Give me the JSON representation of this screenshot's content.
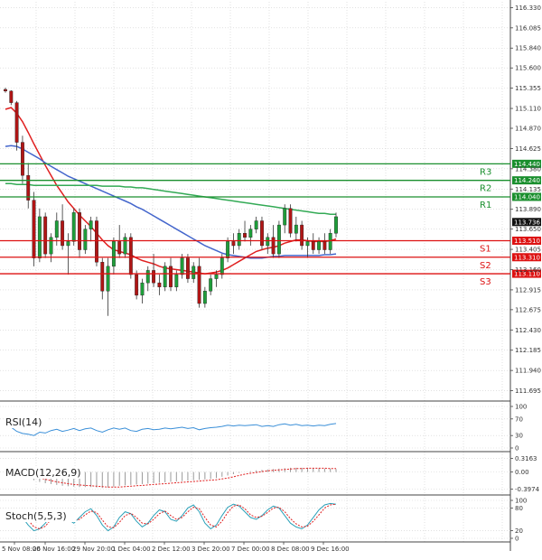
{
  "chart_data": {
    "type": "candlestick",
    "price_ylim": [
      111.57,
      116.4
    ],
    "y_ticks": [
      "116.330",
      "116.085",
      "115.840",
      "115.600",
      "115.355",
      "115.110",
      "114.870",
      "114.625",
      "114.380",
      "114.135",
      "113.890",
      "113.650",
      "113.405",
      "113.160",
      "112.915",
      "112.675",
      "112.430",
      "112.185",
      "111.940",
      "111.695"
    ],
    "y_tick_values": [
      116.33,
      116.085,
      115.84,
      115.6,
      115.355,
      115.11,
      114.87,
      114.625,
      114.38,
      114.135,
      113.89,
      113.65,
      113.405,
      113.16,
      112.915,
      112.675,
      112.43,
      112.185,
      111.94,
      111.695
    ],
    "x_ticks": [
      "5 Nov 08:00",
      "26 Nov 16:00",
      "29 Nov 20:00",
      "1 Dec 04:00",
      "2 Dec 12:00",
      "3 Dec 20:00",
      "7 Dec 00:00",
      "8 Dec 08:00",
      "9 Dec 16:00"
    ],
    "levels": [
      {
        "name": "R3",
        "value": 114.44,
        "label": "114.440",
        "color": "#1a8f2e"
      },
      {
        "name": "R2",
        "value": 114.24,
        "label": "114.240",
        "color": "#1a8f2e"
      },
      {
        "name": "R1",
        "value": 114.04,
        "label": "114.040",
        "color": "#1a8f2e"
      },
      {
        "name": "S1",
        "value": 113.51,
        "label": "113.510",
        "color": "#dd1111"
      },
      {
        "name": "S2",
        "value": 113.31,
        "label": "113.310",
        "color": "#dd1111"
      },
      {
        "name": "S3",
        "value": 113.11,
        "label": "113.110",
        "color": "#dd1111"
      }
    ],
    "current_price": {
      "value": 113.736,
      "label": "113.736"
    },
    "candles": [
      [
        115.34,
        115.36,
        115.3,
        115.32
      ],
      [
        115.32,
        115.33,
        115.15,
        115.18
      ],
      [
        115.18,
        115.2,
        114.6,
        114.7
      ],
      [
        114.7,
        114.78,
        114.2,
        114.3
      ],
      [
        114.3,
        114.45,
        113.9,
        114.0
      ],
      [
        114.0,
        114.1,
        113.2,
        113.3
      ],
      [
        113.3,
        113.9,
        113.25,
        113.8
      ],
      [
        113.8,
        113.85,
        113.3,
        113.35
      ],
      [
        113.35,
        113.6,
        113.25,
        113.55
      ],
      [
        113.55,
        113.85,
        113.45,
        113.75
      ],
      [
        113.75,
        113.95,
        113.4,
        113.45
      ],
      [
        113.45,
        113.6,
        113.1,
        113.5
      ],
      [
        113.5,
        113.9,
        113.45,
        113.85
      ],
      [
        113.85,
        113.9,
        113.3,
        113.4
      ],
      [
        113.4,
        113.7,
        113.35,
        113.65
      ],
      [
        113.65,
        113.8,
        113.5,
        113.75
      ],
      [
        113.75,
        113.8,
        113.2,
        113.25
      ],
      [
        113.25,
        113.3,
        112.8,
        112.9
      ],
      [
        112.9,
        113.3,
        112.6,
        113.2
      ],
      [
        113.2,
        113.55,
        113.1,
        113.5
      ],
      [
        113.5,
        113.7,
        113.3,
        113.35
      ],
      [
        113.35,
        113.6,
        113.3,
        113.55
      ],
      [
        113.55,
        113.6,
        113.05,
        113.1
      ],
      [
        113.1,
        113.15,
        112.8,
        112.85
      ],
      [
        112.85,
        113.05,
        112.75,
        113.0
      ],
      [
        113.0,
        113.2,
        112.9,
        113.15
      ],
      [
        113.15,
        113.35,
        112.95,
        113.0
      ],
      [
        113.0,
        113.1,
        112.85,
        112.95
      ],
      [
        112.95,
        113.25,
        112.9,
        113.2
      ],
      [
        113.2,
        113.3,
        112.9,
        112.95
      ],
      [
        112.95,
        113.15,
        112.9,
        113.1
      ],
      [
        113.1,
        113.35,
        113.05,
        113.3
      ],
      [
        113.3,
        113.35,
        113.0,
        113.05
      ],
      [
        113.05,
        113.25,
        113.0,
        113.2
      ],
      [
        113.2,
        113.3,
        112.7,
        112.75
      ],
      [
        112.75,
        112.95,
        112.7,
        112.9
      ],
      [
        112.9,
        113.1,
        112.85,
        113.05
      ],
      [
        113.05,
        113.15,
        112.95,
        113.1
      ],
      [
        113.1,
        113.35,
        113.05,
        113.3
      ],
      [
        113.3,
        113.55,
        113.25,
        113.5
      ],
      [
        113.5,
        113.6,
        113.35,
        113.45
      ],
      [
        113.45,
        113.65,
        113.4,
        113.6
      ],
      [
        113.6,
        113.75,
        113.5,
        113.55
      ],
      [
        113.55,
        113.7,
        113.45,
        113.65
      ],
      [
        113.65,
        113.8,
        113.6,
        113.75
      ],
      [
        113.75,
        113.8,
        113.4,
        113.45
      ],
      [
        113.45,
        113.6,
        113.35,
        113.55
      ],
      [
        113.55,
        113.7,
        113.3,
        113.35
      ],
      [
        113.35,
        113.75,
        113.3,
        113.7
      ],
      [
        113.7,
        113.95,
        113.6,
        113.9
      ],
      [
        113.9,
        113.95,
        113.55,
        113.6
      ],
      [
        113.6,
        113.8,
        113.5,
        113.7
      ],
      [
        113.7,
        113.75,
        113.4,
        113.45
      ],
      [
        113.45,
        113.55,
        113.3,
        113.5
      ],
      [
        113.5,
        113.6,
        113.35,
        113.4
      ],
      [
        113.4,
        113.55,
        113.35,
        113.5
      ],
      [
        113.5,
        113.6,
        113.35,
        113.4
      ],
      [
        113.4,
        113.65,
        113.35,
        113.6
      ],
      [
        113.6,
        113.85,
        113.55,
        113.8
      ]
    ],
    "series": [
      {
        "name": "MA-short",
        "color": "#e02020",
        "values": [
          115.1,
          115.12,
          115.05,
          114.95,
          114.82,
          114.68,
          114.55,
          114.42,
          114.3,
          114.18,
          114.08,
          113.98,
          113.9,
          113.82,
          113.75,
          113.68,
          113.6,
          113.52,
          113.45,
          113.4,
          113.38,
          113.36,
          113.34,
          113.3,
          113.27,
          113.25,
          113.23,
          113.2,
          113.18,
          113.17,
          113.16,
          113.15,
          113.14,
          113.13,
          113.12,
          113.11,
          113.12,
          113.13,
          113.15,
          113.18,
          113.22,
          113.26,
          113.3,
          113.34,
          113.38,
          113.4,
          113.42,
          113.43,
          113.45,
          113.48,
          113.5,
          113.52,
          113.52,
          113.51,
          113.5,
          113.5,
          113.5,
          113.51,
          113.53
        ]
      },
      {
        "name": "MA-mid",
        "color": "#4466cc",
        "values": [
          114.65,
          114.66,
          114.65,
          114.62,
          114.58,
          114.54,
          114.5,
          114.45,
          114.41,
          114.37,
          114.33,
          114.29,
          114.26,
          114.23,
          114.2,
          114.17,
          114.14,
          114.11,
          114.08,
          114.05,
          114.02,
          113.99,
          113.96,
          113.92,
          113.89,
          113.85,
          113.81,
          113.77,
          113.73,
          113.69,
          113.65,
          113.61,
          113.57,
          113.53,
          113.49,
          113.45,
          113.42,
          113.39,
          113.36,
          113.34,
          113.33,
          113.32,
          113.31,
          113.3,
          113.3,
          113.3,
          113.31,
          113.32,
          113.32,
          113.33,
          113.33,
          113.33,
          113.33,
          113.33,
          113.33,
          113.33,
          113.34,
          113.34,
          113.35
        ]
      },
      {
        "name": "MA-long",
        "color": "#33aa55",
        "values": [
          114.2,
          114.2,
          114.19,
          114.19,
          114.19,
          114.18,
          114.18,
          114.18,
          114.18,
          114.18,
          114.18,
          114.18,
          114.18,
          114.18,
          114.18,
          114.18,
          114.18,
          114.17,
          114.17,
          114.17,
          114.17,
          114.16,
          114.16,
          114.15,
          114.15,
          114.14,
          114.13,
          114.12,
          114.11,
          114.1,
          114.09,
          114.08,
          114.07,
          114.06,
          114.05,
          114.04,
          114.03,
          114.02,
          114.01,
          114.0,
          113.99,
          113.98,
          113.97,
          113.96,
          113.95,
          113.94,
          113.93,
          113.92,
          113.91,
          113.9,
          113.89,
          113.88,
          113.87,
          113.86,
          113.85,
          113.84,
          113.84,
          113.83,
          113.83
        ]
      }
    ],
    "indicators": [
      {
        "name": "RSI(14)",
        "ticks": [
          "100",
          "70",
          "30",
          "0"
        ],
        "tick_values": [
          100,
          70,
          30,
          0
        ],
        "ylim": [
          0,
          100
        ],
        "values": [
          55,
          50,
          40,
          35,
          33,
          30,
          38,
          36,
          42,
          45,
          40,
          43,
          47,
          42,
          46,
          48,
          42,
          38,
          44,
          48,
          45,
          48,
          42,
          40,
          45,
          47,
          44,
          45,
          48,
          46,
          48,
          50,
          47,
          49,
          44,
          47,
          49,
          50,
          52,
          55,
          53,
          55,
          54,
          55,
          56,
          52,
          54,
          52,
          56,
          58,
          55,
          57,
          54,
          55,
          53,
          55,
          54,
          57,
          59
        ]
      },
      {
        "name": "MACD(12,26,9)",
        "ticks": [
          "0.3163",
          "0.00",
          "-0.3974"
        ],
        "tick_values": [
          0.3163,
          0,
          -0.3974
        ],
        "ylim": [
          -0.45,
          0.35
        ],
        "values": [
          0.02,
          0.01,
          -0.03,
          -0.08,
          -0.13,
          -0.19,
          -0.23,
          -0.26,
          -0.28,
          -0.3,
          -0.32,
          -0.33,
          -0.34,
          -0.35,
          -0.35,
          -0.35,
          -0.36,
          -0.37,
          -0.36,
          -0.34,
          -0.32,
          -0.31,
          -0.3,
          -0.29,
          -0.28,
          -0.27,
          -0.26,
          -0.25,
          -0.24,
          -0.23,
          -0.22,
          -0.21,
          -0.2,
          -0.19,
          -0.18,
          -0.17,
          -0.16,
          -0.14,
          -0.11,
          -0.08,
          -0.05,
          -0.02,
          0.0,
          0.02,
          0.04,
          0.05,
          0.06,
          0.07,
          0.08,
          0.09,
          0.1,
          0.1,
          0.1,
          0.1,
          0.09,
          0.09,
          0.08,
          0.08,
          0.07
        ],
        "signal": [
          0.03,
          0.02,
          0.01,
          -0.02,
          -0.05,
          -0.09,
          -0.13,
          -0.17,
          -0.2,
          -0.23,
          -0.25,
          -0.27,
          -0.29,
          -0.3,
          -0.31,
          -0.32,
          -0.33,
          -0.34,
          -0.35,
          -0.35,
          -0.35,
          -0.34,
          -0.33,
          -0.32,
          -0.31,
          -0.3,
          -0.29,
          -0.28,
          -0.27,
          -0.26,
          -0.25,
          -0.24,
          -0.23,
          -0.22,
          -0.21,
          -0.2,
          -0.19,
          -0.18,
          -0.16,
          -0.14,
          -0.11,
          -0.08,
          -0.05,
          -0.03,
          -0.01,
          0.01,
          0.03,
          0.04,
          0.05,
          0.06,
          0.07,
          0.08,
          0.08,
          0.09,
          0.09,
          0.09,
          0.09,
          0.08,
          0.08
        ]
      },
      {
        "name": "Stoch(5,5,3)",
        "ticks": [
          "100",
          "80",
          "20",
          "0"
        ],
        "tick_values": [
          100,
          80,
          20,
          0
        ],
        "ylim": [
          0,
          100
        ],
        "values": [
          60,
          72,
          75,
          55,
          35,
          20,
          25,
          40,
          60,
          75,
          70,
          50,
          40,
          55,
          70,
          78,
          60,
          35,
          20,
          30,
          55,
          70,
          65,
          45,
          30,
          40,
          60,
          75,
          70,
          50,
          45,
          60,
          80,
          88,
          70,
          40,
          25,
          35,
          60,
          82,
          90,
          85,
          70,
          55,
          50,
          60,
          75,
          85,
          80,
          60,
          40,
          30,
          25,
          35,
          55,
          75,
          88,
          92,
          90
        ],
        "signal": [
          55,
          65,
          72,
          65,
          48,
          30,
          25,
          32,
          50,
          68,
          72,
          60,
          48,
          50,
          62,
          72,
          68,
          48,
          30,
          28,
          42,
          60,
          66,
          55,
          40,
          38,
          50,
          65,
          72,
          60,
          50,
          55,
          70,
          82,
          78,
          55,
          35,
          30,
          45,
          68,
          85,
          88,
          78,
          62,
          55,
          58,
          68,
          80,
          82,
          70,
          52,
          38,
          30,
          32,
          45,
          62,
          80,
          88,
          90
        ]
      }
    ]
  }
}
